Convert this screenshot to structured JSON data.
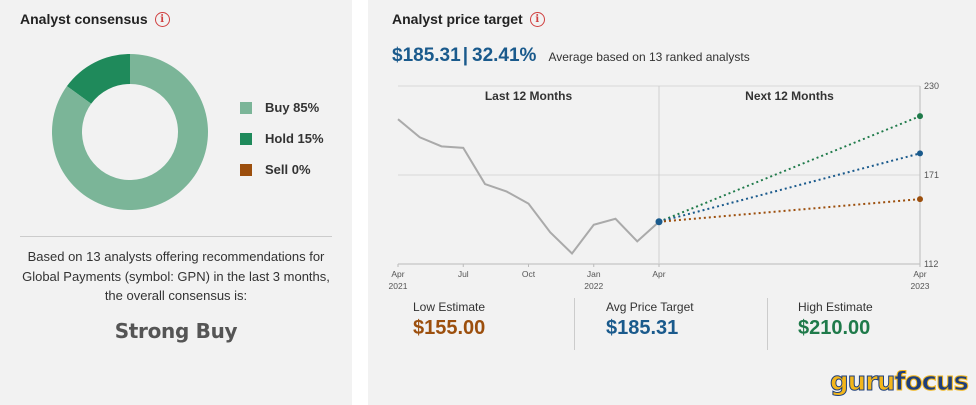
{
  "consensus": {
    "title": "Analyst consensus",
    "info_icon": "info-icon",
    "legend": [
      {
        "label": "Buy 85%",
        "value": 85,
        "color": "#7bb598"
      },
      {
        "label": "Hold 15%",
        "value": 15,
        "color": "#1f8a5b"
      },
      {
        "label": "Sell 0%",
        "value": 0,
        "color": "#9c4f0d"
      }
    ],
    "description": "Based on 13 analysts offering recommendations for Global Payments (symbol: GPN) in the last 3 months, the overall consensus is:",
    "verdict": "Strong Buy"
  },
  "price_target": {
    "title": "Analyst price target",
    "avg_price": "$185.31",
    "separator": "|",
    "upside": "32.41%",
    "note": "Average based on 13 ranked analysts",
    "estimates": [
      {
        "label": "Low Estimate",
        "value": "$155.00",
        "color": "#9c4f0d"
      },
      {
        "label": "Avg Price Target",
        "value": "$185.31",
        "color": "#1a5a8c"
      },
      {
        "label": "High Estimate",
        "value": "$210.00",
        "color": "#1f7a4a"
      }
    ]
  },
  "chart_data": {
    "type": "line",
    "section_labels": [
      "Last 12 Months",
      "Next 12 Months"
    ],
    "y_ticks": [
      230,
      171,
      112
    ],
    "ylim": [
      112,
      230
    ],
    "x_ticks": [
      {
        "label": "Apr",
        "sub": "2021",
        "t": 0
      },
      {
        "label": "Jul",
        "sub": "",
        "t": 3
      },
      {
        "label": "Oct",
        "sub": "",
        "t": 6
      },
      {
        "label": "Jan",
        "sub": "2022",
        "t": 9
      },
      {
        "label": "Apr",
        "sub": "",
        "t": 12
      },
      {
        "label": "Apr",
        "sub": "2023",
        "t": 24
      }
    ],
    "history": {
      "t": [
        0,
        1,
        2,
        3,
        4,
        5,
        6,
        7,
        8,
        9,
        10,
        11,
        12
      ],
      "values": [
        208,
        196,
        190,
        189,
        165,
        160,
        152,
        133,
        119,
        138,
        142,
        127,
        140
      ]
    },
    "projections": [
      {
        "name": "High Estimate",
        "from": 140,
        "to": 210,
        "color": "#1f7a4a"
      },
      {
        "name": "Avg Price Target",
        "from": 140,
        "to": 185.31,
        "color": "#1a5a8c"
      },
      {
        "name": "Low Estimate",
        "from": 140,
        "to": 155,
        "color": "#9c4f0d"
      }
    ]
  },
  "logo": {
    "part1": "guru",
    "part2": "focus"
  }
}
